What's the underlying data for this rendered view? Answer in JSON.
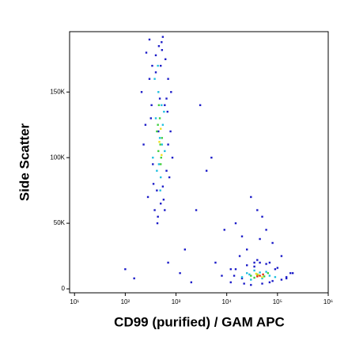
{
  "chart_data": {
    "type": "scatter",
    "x_label": "CD99 (purified) / GAM APC",
    "y_label": "Side Scatter",
    "xscale": "log",
    "xlim": [
      8,
      1000000
    ],
    "ylim": [
      -3000,
      196000
    ],
    "xticks": [
      {
        "value": 10,
        "label": "10¹"
      },
      {
        "value": 100,
        "label": "10²"
      },
      {
        "value": 1000,
        "label": "10³"
      },
      {
        "value": 10000,
        "label": "10⁴"
      },
      {
        "value": 100000,
        "label": "10⁵"
      },
      {
        "value": 1000000,
        "label": "10⁶"
      }
    ],
    "yticks": [
      0,
      {
        "value": 50000,
        "label": "50K"
      },
      {
        "value": 100000,
        "label": "100K"
      },
      {
        "value": 150000,
        "label": "150K"
      }
    ],
    "series": [
      {
        "color": "#1c1cc8",
        "x": [
          210,
          260,
          300,
          340,
          380,
          420,
          460,
          500,
          550,
          600,
          650,
          700,
          780,
          850,
          230,
          280,
          320,
          360,
          400,
          440,
          480,
          520,
          570,
          620,
          680,
          740,
          800,
          300,
          350,
          400,
          450,
          500,
          550,
          600,
          650,
          700,
          250,
          330,
          430,
          530,
          1500,
          2500,
          4000,
          6000,
          3000,
          9000,
          20000,
          50000,
          80000,
          120000,
          30000,
          12000,
          18000,
          25000,
          60000,
          150000,
          40000,
          8000,
          1200,
          100,
          150,
          700,
          2000,
          5000,
          70000,
          200000,
          15000,
          35000,
          45000,
          90000,
          12000,
          15000,
          20000,
          25000,
          30000,
          40000,
          50000,
          60000,
          80000,
          100000,
          150000,
          180000,
          14000,
          22000,
          45000,
          70000,
          120000,
          35000
        ],
        "values": [
          150000,
          180000,
          190000,
          170000,
          60000,
          75000,
          185000,
          65000,
          192000,
          140000,
          90000,
          160000,
          120000,
          100000,
          110000,
          70000,
          130000,
          80000,
          178000,
          55000,
          145000,
          188000,
          68000,
          175000,
          135000,
          85000,
          150000,
          160000,
          95000,
          165000,
          120000,
          170000,
          78000,
          60000,
          145000,
          110000,
          125000,
          140000,
          50000,
          182000,
          30000,
          60000,
          90000,
          20000,
          140000,
          45000,
          40000,
          55000,
          35000,
          25000,
          70000,
          15000,
          25000,
          30000,
          45000,
          8000,
          60000,
          10000,
          12000,
          15000,
          8000,
          20000,
          5000,
          100000,
          20000,
          12000,
          50000,
          20000,
          38000,
          15000,
          5000,
          15000,
          8000,
          18000,
          3000,
          22000,
          4000,
          19000,
          6000,
          16000,
          9000,
          12000,
          10000,
          4000,
          20000,
          5000,
          7000,
          17000
        ]
      },
      {
        "color": "#20c0e0",
        "x": [
          350,
          400,
          420,
          450,
          480,
          500,
          520,
          550,
          600,
          380,
          460,
          530,
          580,
          440,
          490,
          20000,
          25000,
          30000,
          35000,
          50000,
          60000,
          70000,
          90000,
          28000,
          45000
        ],
        "values": [
          100000,
          130000,
          90000,
          150000,
          115000,
          85000,
          140000,
          125000,
          105000,
          160000,
          95000,
          110000,
          135000,
          170000,
          75000,
          9000,
          12000,
          7000,
          14000,
          8000,
          13000,
          10000,
          9000,
          11000,
          12500
        ]
      },
      {
        "color": "#40d040",
        "x": [
          420,
          450,
          480,
          500,
          530,
          460,
          510,
          490,
          440,
          30000,
          40000,
          55000,
          65000,
          35000
        ],
        "values": [
          120000,
          105000,
          130000,
          95000,
          115000,
          140000,
          100000,
          110000,
          125000,
          10000,
          11000,
          9500,
          12000,
          8500
        ]
      },
      {
        "color": "#f0e020",
        "x": [
          470,
          500,
          520,
          42000,
          50000,
          38000
        ],
        "values": [
          112000,
          122000,
          102000,
          10500,
          9000,
          11500
        ]
      },
      {
        "color": "#e03010",
        "x": [
          45000,
          52000,
          40000
        ],
        "values": [
          10000,
          11000,
          9500
        ]
      }
    ]
  }
}
